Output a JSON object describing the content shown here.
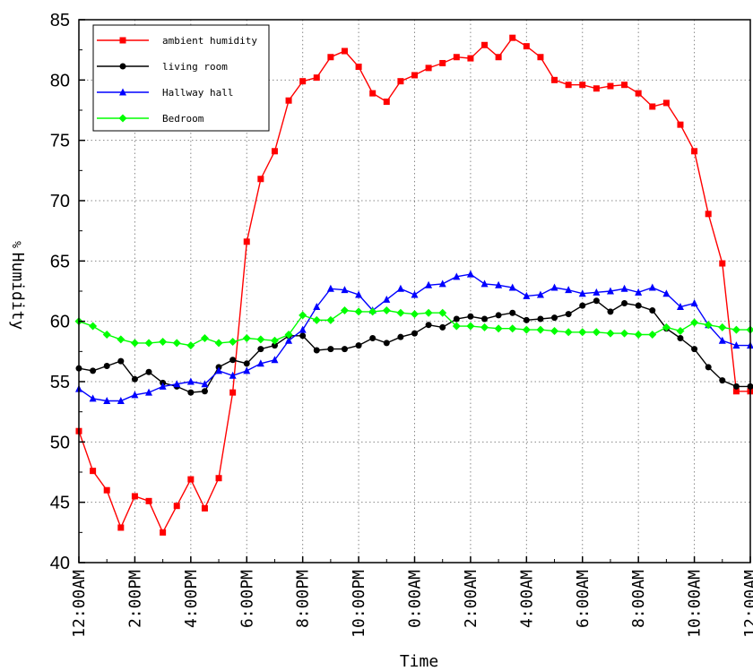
{
  "chart_data": {
    "type": "line",
    "title": "",
    "xlabel": "Time",
    "ylabel": "Humidity",
    "ylabel_unit": "%",
    "ylim": [
      40,
      85
    ],
    "yticks": [
      40,
      45,
      50,
      55,
      60,
      65,
      70,
      75,
      80,
      85
    ],
    "x_range": [
      0,
      48
    ],
    "grid": true,
    "legend_position": "top-left",
    "xticks": [
      {
        "x": 0,
        "label": "12:00AM"
      },
      {
        "x": 4,
        "label": "2:00PM"
      },
      {
        "x": 8,
        "label": "4:00PM"
      },
      {
        "x": 12,
        "label": "6:00PM"
      },
      {
        "x": 16,
        "label": "8:00PM"
      },
      {
        "x": 20,
        "label": "10:00PM"
      },
      {
        "x": 24,
        "label": "0:00AM"
      },
      {
        "x": 28,
        "label": "2:00AM"
      },
      {
        "x": 32,
        "label": "4:00AM"
      },
      {
        "x": 36,
        "label": "6:00AM"
      },
      {
        "x": 40,
        "label": "8:00AM"
      },
      {
        "x": 44,
        "label": "10:00AM"
      },
      {
        "x": 48,
        "label": "12:00AM"
      }
    ],
    "series": [
      {
        "name": "ambient humidity",
        "color": "#ff0000",
        "marker": "square",
        "x": [
          0,
          1,
          2,
          3,
          4,
          5,
          6,
          7,
          8,
          9,
          10,
          11,
          12,
          13,
          14,
          15,
          16,
          17,
          18,
          19,
          20,
          21,
          22,
          23,
          24,
          25,
          26,
          27,
          28,
          29,
          30,
          31,
          32,
          33,
          34,
          35,
          36,
          37,
          38,
          39,
          40,
          41,
          42,
          43,
          44,
          45,
          46,
          47,
          48
        ],
        "values": [
          50.9,
          47.6,
          46.0,
          42.9,
          45.5,
          45.1,
          42.5,
          44.7,
          46.9,
          44.5,
          47.0,
          54.1,
          66.6,
          71.8,
          74.1,
          78.3,
          79.9,
          80.2,
          81.9,
          82.4,
          81.1,
          78.9,
          78.2,
          79.9,
          80.4,
          81.0,
          81.4,
          81.9,
          81.8,
          82.9,
          81.9,
          83.5,
          82.8,
          81.9,
          80.0,
          79.6,
          79.6,
          79.3,
          79.5,
          79.6,
          78.9,
          77.8,
          78.1,
          76.3,
          74.1,
          68.9,
          64.8,
          54.2,
          54.2
        ]
      },
      {
        "name": "living room",
        "color": "#000000",
        "marker": "circle",
        "x": [
          0,
          1,
          2,
          3,
          4,
          5,
          6,
          7,
          8,
          9,
          10,
          11,
          12,
          13,
          14,
          15,
          16,
          17,
          18,
          19,
          20,
          21,
          22,
          23,
          24,
          25,
          26,
          27,
          28,
          29,
          30,
          31,
          32,
          33,
          34,
          35,
          36,
          37,
          38,
          39,
          40,
          41,
          42,
          43,
          44,
          45,
          46,
          47,
          48
        ],
        "values": [
          56.1,
          55.9,
          56.3,
          56.7,
          55.2,
          55.8,
          54.9,
          54.6,
          54.1,
          54.2,
          56.2,
          56.8,
          56.5,
          57.7,
          58.0,
          58.8,
          58.8,
          57.6,
          57.7,
          57.7,
          58.0,
          58.6,
          58.2,
          58.7,
          59.0,
          59.7,
          59.5,
          60.2,
          60.4,
          60.2,
          60.5,
          60.7,
          60.1,
          60.2,
          60.3,
          60.6,
          61.3,
          61.7,
          60.8,
          61.5,
          61.3,
          60.9,
          59.4,
          58.6,
          57.7,
          56.2,
          55.1,
          54.6,
          54.6
        ]
      },
      {
        "name": "Hallway hall",
        "color": "#0000ff",
        "marker": "triangle",
        "x": [
          0,
          1,
          2,
          3,
          4,
          5,
          6,
          7,
          8,
          9,
          10,
          11,
          12,
          13,
          14,
          15,
          16,
          17,
          18,
          19,
          20,
          21,
          22,
          23,
          24,
          25,
          26,
          27,
          28,
          29,
          30,
          31,
          32,
          33,
          34,
          35,
          36,
          37,
          38,
          39,
          40,
          41,
          42,
          43,
          44,
          45,
          46,
          47,
          48
        ],
        "values": [
          54.4,
          53.6,
          53.4,
          53.4,
          53.9,
          54.1,
          54.6,
          54.8,
          55.0,
          54.8,
          55.9,
          55.5,
          55.9,
          56.5,
          56.8,
          58.4,
          59.3,
          61.2,
          62.7,
          62.6,
          62.2,
          60.9,
          61.8,
          62.7,
          62.2,
          63.0,
          63.1,
          63.7,
          63.9,
          63.1,
          63.0,
          62.8,
          62.1,
          62.2,
          62.8,
          62.6,
          62.3,
          62.4,
          62.5,
          62.7,
          62.4,
          62.8,
          62.3,
          61.2,
          61.5,
          59.7,
          58.4,
          58.0,
          58.0
        ]
      },
      {
        "name": "Bedroom",
        "color": "#00ff00",
        "marker": "diamond",
        "x": [
          0,
          1,
          2,
          3,
          4,
          5,
          6,
          7,
          8,
          9,
          10,
          11,
          12,
          13,
          14,
          15,
          16,
          17,
          18,
          19,
          20,
          21,
          22,
          23,
          24,
          25,
          26,
          27,
          28,
          29,
          30,
          31,
          32,
          33,
          34,
          35,
          36,
          37,
          38,
          39,
          40,
          41,
          42,
          43,
          44,
          45,
          46,
          47,
          48
        ],
        "values": [
          60.0,
          59.6,
          58.9,
          58.5,
          58.2,
          58.2,
          58.3,
          58.2,
          58.0,
          58.6,
          58.2,
          58.3,
          58.6,
          58.5,
          58.4,
          58.9,
          60.5,
          60.1,
          60.1,
          60.9,
          60.8,
          60.8,
          60.9,
          60.7,
          60.6,
          60.7,
          60.7,
          59.6,
          59.6,
          59.5,
          59.4,
          59.4,
          59.3,
          59.3,
          59.2,
          59.1,
          59.1,
          59.1,
          59.0,
          59.0,
          58.9,
          58.9,
          59.5,
          59.2,
          59.9,
          59.7,
          59.5,
          59.3,
          59.3
        ]
      }
    ]
  }
}
